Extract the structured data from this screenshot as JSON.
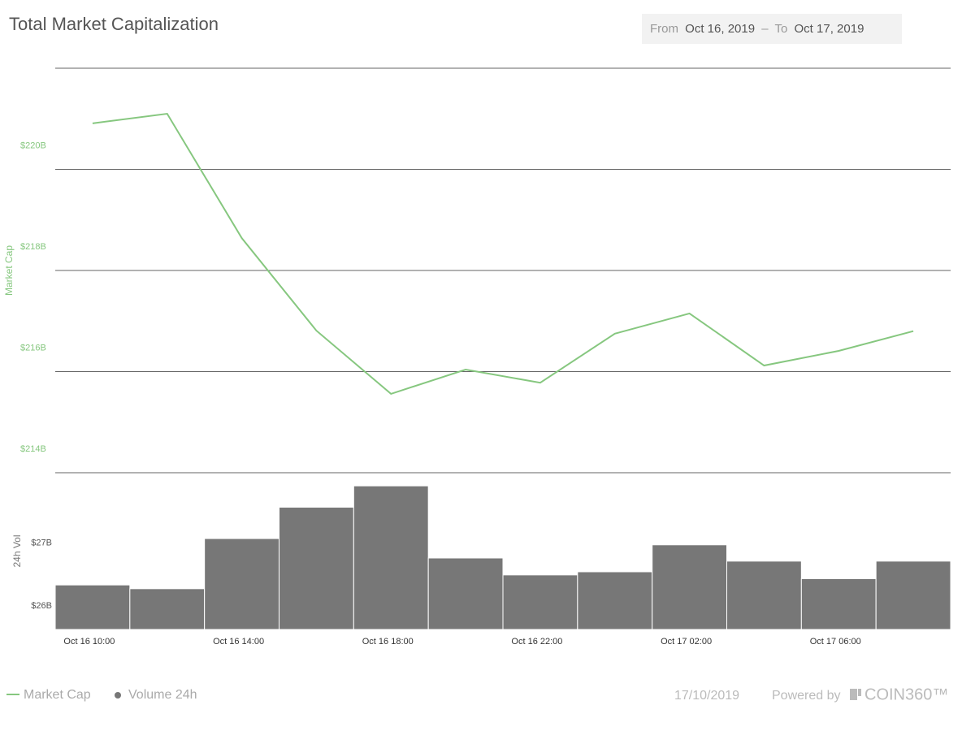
{
  "header": {
    "title": "Total Market Capitalization",
    "from_label": "From",
    "from": "Oct 16, 2019",
    "separator": "–",
    "to_label": "To",
    "to": "Oct 17, 2019"
  },
  "footer": {
    "date": "17/10/2019",
    "powered": "Powered by",
    "brand": "COIN360™"
  },
  "chart_data": [
    {
      "type": "line",
      "y_label": "Market Cap",
      "series": [
        {
          "name": "Market Cap",
          "color": "#86c77f",
          "values": [
            220.91,
            221.1,
            218.64,
            216.81,
            215.56,
            216.04,
            215.78,
            216.75,
            217.15,
            216.12,
            216.41,
            216.8
          ]
        }
      ],
      "ylim": [
        214,
        222
      ],
      "yticks": [
        {
          "value": 214,
          "label": "$214B"
        },
        {
          "value": 216,
          "label": "$216B"
        },
        {
          "value": 218,
          "label": "$218B"
        },
        {
          "value": 220,
          "label": "$220B"
        }
      ],
      "grid": true
    },
    {
      "type": "bar",
      "y_label": "24h Vol",
      "categories": [
        "Oct 16 10:00",
        null,
        "Oct 16 14:00",
        null,
        "Oct 16 18:00",
        null,
        "Oct 16 22:00",
        null,
        "Oct 17 02:00",
        null,
        "Oct 17 06:00",
        null
      ],
      "series": [
        {
          "name": "Volume 24h",
          "color": "#777777",
          "values": [
            26.71,
            26.65,
            27.45,
            27.95,
            28.29,
            27.14,
            26.87,
            26.92,
            27.35,
            27.09,
            26.81,
            27.09
          ]
        }
      ],
      "ylim": [
        26,
        28.5
      ],
      "yticks": [
        {
          "value": 26,
          "label": "$26B"
        },
        {
          "value": 27,
          "label": "$27B"
        }
      ]
    }
  ]
}
